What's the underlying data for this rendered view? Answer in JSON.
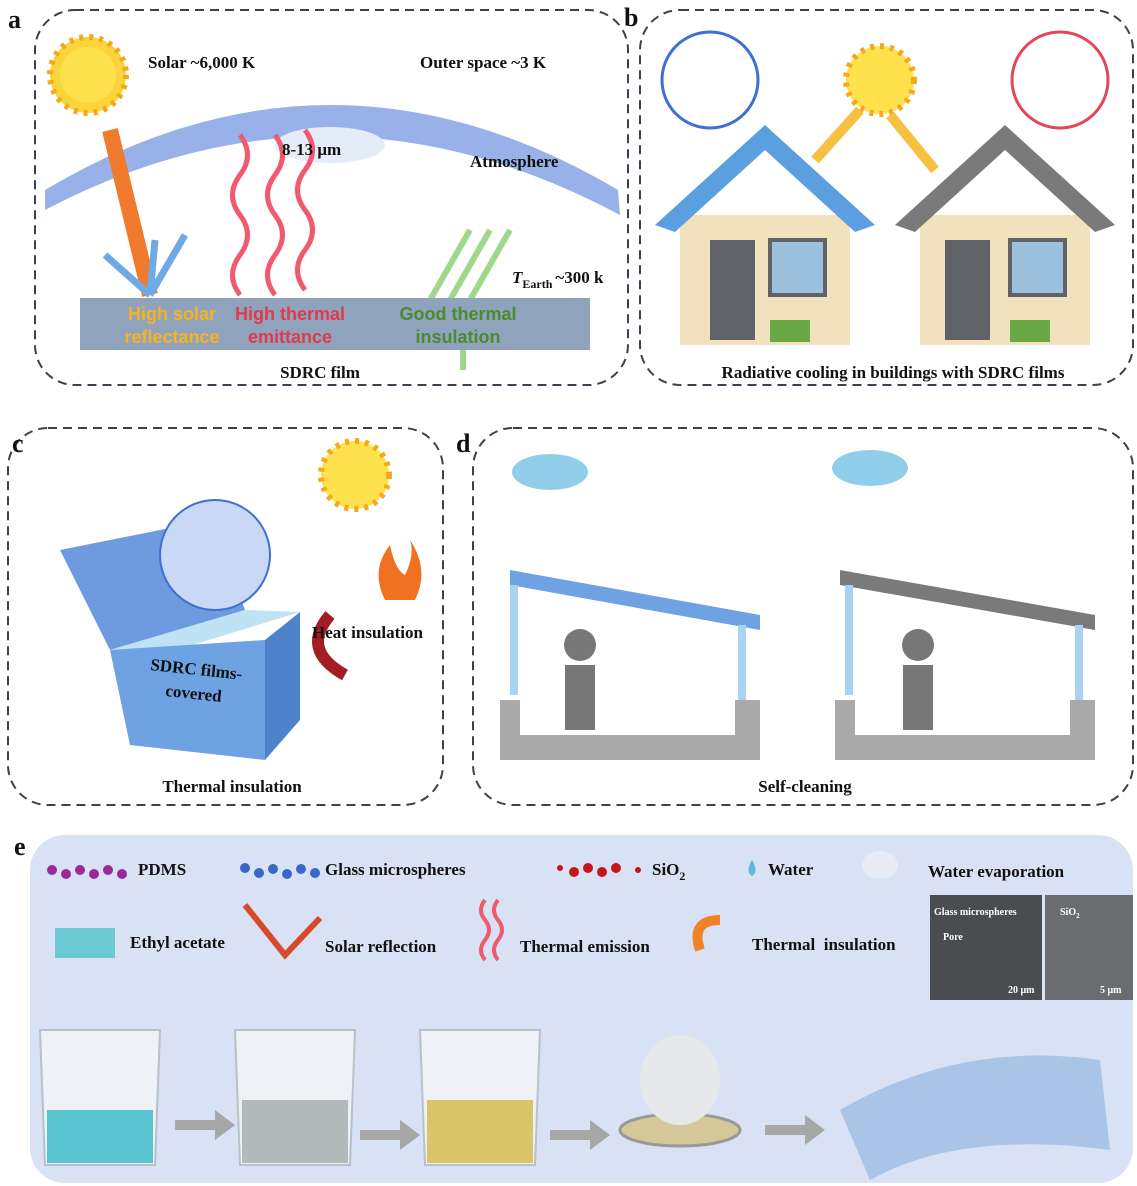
{
  "panel_a": {
    "label": "a",
    "solar": "Solar ~6,000 K",
    "outer_space": "Outer space ~3 K",
    "window": "8-13 μm",
    "atmosphere": "Atmosphere",
    "earth_temp": {
      "symbol": "T",
      "subscript": "Earth",
      "text": "~300 k"
    },
    "reflectance": [
      "High solar",
      "reflectance"
    ],
    "emittance": [
      "High thermal",
      "emittance"
    ],
    "insulation": [
      "Good thermal",
      "insulation"
    ],
    "film": "SDRC film"
  },
  "panel_b": {
    "label": "b",
    "caption": "Radiative cooling in buildings with SDRC films"
  },
  "panel_c": {
    "label": "c",
    "box": [
      "SDRC films-",
      "covered"
    ],
    "heat": "Heat insulation",
    "caption": "Thermal insulation"
  },
  "panel_d": {
    "label": "d",
    "caption": "Self-cleaning"
  },
  "panel_e": {
    "label": "e",
    "legend": {
      "pdms": "PDMS",
      "glass": "Glass microspheres",
      "sio2": {
        "base": "SiO",
        "sub": "2"
      },
      "water": "Water",
      "evaporation": "Water evaporation",
      "ethyl": "Ethyl acetate",
      "reflection": "Solar reflection",
      "emission": "Thermal emission",
      "insulation": "Thermal  insulation"
    },
    "inset": {
      "glass": "Glass microspheres",
      "pore": "Pore",
      "scale1": "20 μm",
      "sio2": {
        "base": "SiO",
        "sub": "2"
      },
      "scale2": "5 μm"
    }
  }
}
